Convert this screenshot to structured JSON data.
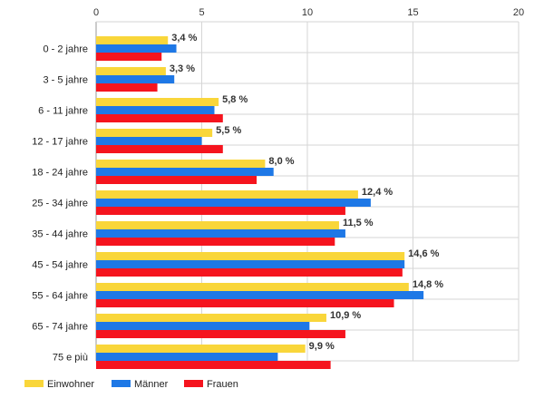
{
  "chart_data": {
    "type": "bar",
    "orientation": "horizontal",
    "categories": [
      "0 - 2 jahre",
      "3 - 5 jahre",
      "6 - 11 jahre",
      "12 - 17 jahre",
      "18 - 24 jahre",
      "25 - 34 jahre",
      "35 - 44 jahre",
      "45 - 54 jahre",
      "55 - 64 jahre",
      "65 - 74 jahre",
      "75 e più"
    ],
    "series": [
      {
        "name": "Einwohner",
        "color": "#f9d63a",
        "values": [
          3.4,
          3.3,
          5.8,
          5.5,
          8.0,
          12.4,
          11.5,
          14.6,
          14.8,
          10.9,
          9.9
        ]
      },
      {
        "name": "Männer",
        "color": "#1e78e6",
        "values": [
          3.8,
          3.7,
          5.6,
          5.0,
          8.4,
          13.0,
          11.8,
          14.6,
          15.5,
          10.1,
          8.6
        ]
      },
      {
        "name": "Frauen",
        "color": "#f5141e",
        "values": [
          3.1,
          2.9,
          6.0,
          6.0,
          7.6,
          11.8,
          11.3,
          14.5,
          14.1,
          11.8,
          11.1
        ]
      }
    ],
    "data_labels": [
      "3,4 %",
      "3,3 %",
      "5,8 %",
      "5,5 %",
      "8,0 %",
      "12,4 %",
      "11,5 %",
      "14,6 %",
      "14,8 %",
      "10,9 %",
      "9,9 %"
    ],
    "x_ticks": [
      "0",
      "5",
      "10",
      "15",
      "20"
    ],
    "xlim": [
      0,
      20
    ],
    "x_axis_position": "top",
    "grid": true,
    "legend_position": "bottom-left"
  }
}
